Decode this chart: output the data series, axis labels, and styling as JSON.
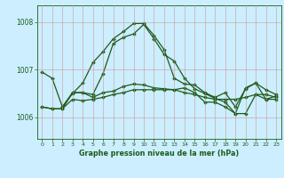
{
  "title": "Graphe pression niveau de la mer (hPa)",
  "bg_color": "#cceeff",
  "grid_color": "#cc9999",
  "line_color": "#1a5c1a",
  "xlim": [
    -0.5,
    23.5
  ],
  "ylim": [
    1005.55,
    1008.35
  ],
  "yticks": [
    1006,
    1007,
    1008
  ],
  "xticks": [
    0,
    1,
    2,
    3,
    4,
    5,
    6,
    7,
    8,
    9,
    10,
    11,
    12,
    13,
    14,
    15,
    16,
    17,
    18,
    19,
    20,
    21,
    22,
    23
  ],
  "series1_x": [
    0,
    1,
    2,
    3,
    4,
    5,
    6,
    7,
    8,
    9,
    10,
    11,
    12,
    13,
    14,
    15,
    16,
    17,
    18,
    19,
    20,
    21,
    22,
    23
  ],
  "series1_y": [
    1006.95,
    1006.82,
    1006.22,
    1006.5,
    1006.72,
    1007.15,
    1007.38,
    1007.65,
    1007.8,
    1007.97,
    1007.97,
    1007.72,
    1007.42,
    1006.82,
    1006.7,
    1006.68,
    1006.52,
    1006.42,
    1006.52,
    1006.22,
    1006.6,
    1006.72,
    1006.58,
    1006.48
  ],
  "series2_x": [
    2,
    3,
    4,
    5,
    6,
    7,
    8,
    9,
    10,
    11,
    12,
    13,
    14,
    15,
    16,
    17,
    18,
    19,
    20,
    21,
    22,
    23
  ],
  "series2_y": [
    1006.22,
    1006.52,
    1006.52,
    1006.48,
    1006.92,
    1007.55,
    1007.68,
    1007.75,
    1007.95,
    1007.65,
    1007.32,
    1007.18,
    1006.82,
    1006.6,
    1006.5,
    1006.4,
    1006.32,
    1006.08,
    1006.62,
    1006.72,
    1006.38,
    1006.45
  ],
  "series3_x": [
    0,
    1,
    2,
    3,
    4,
    5,
    6,
    7,
    8,
    9,
    10,
    11,
    12,
    13,
    14,
    15,
    16,
    17,
    18,
    19,
    20,
    21,
    22,
    23
  ],
  "series3_y": [
    1006.22,
    1006.18,
    1006.18,
    1006.52,
    1006.52,
    1006.42,
    1006.52,
    1006.55,
    1006.65,
    1006.7,
    1006.68,
    1006.62,
    1006.6,
    1006.58,
    1006.62,
    1006.52,
    1006.32,
    1006.32,
    1006.22,
    1006.08,
    1006.08,
    1006.48,
    1006.38,
    1006.38
  ],
  "series4_x": [
    0,
    1,
    2,
    3,
    4,
    5,
    6,
    7,
    8,
    9,
    10,
    11,
    12,
    13,
    14,
    15,
    16,
    17,
    18,
    19,
    20,
    21,
    22,
    23
  ],
  "series4_y": [
    1006.22,
    1006.18,
    1006.18,
    1006.38,
    1006.35,
    1006.38,
    1006.42,
    1006.48,
    1006.52,
    1006.58,
    1006.58,
    1006.58,
    1006.58,
    1006.58,
    1006.52,
    1006.48,
    1006.42,
    1006.38,
    1006.38,
    1006.38,
    1006.42,
    1006.48,
    1006.48,
    1006.42
  ]
}
